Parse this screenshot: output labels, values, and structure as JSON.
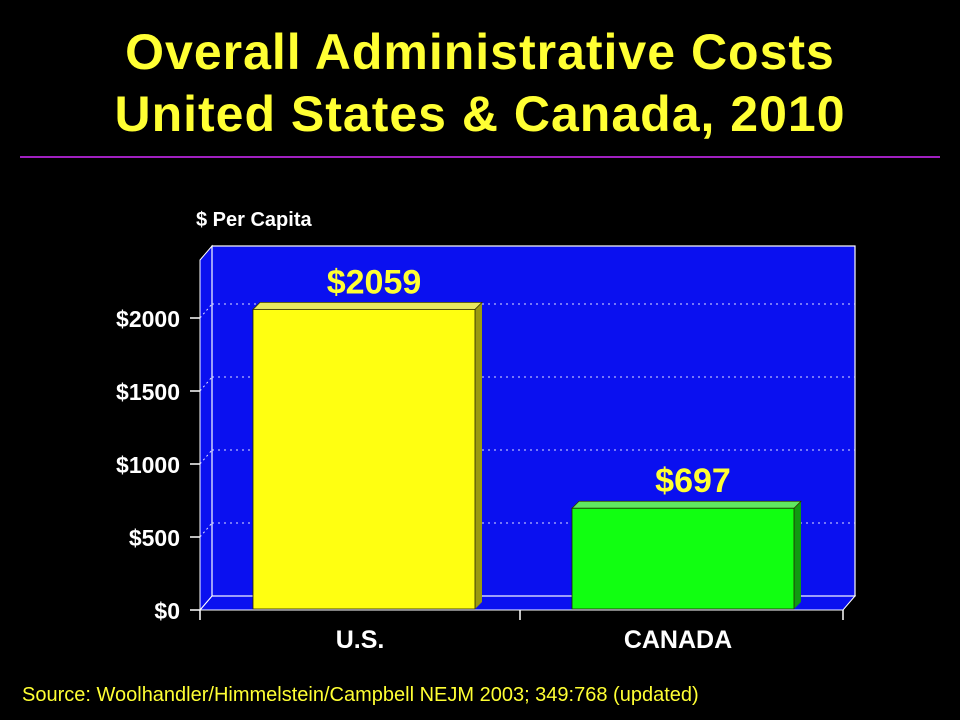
{
  "title": {
    "line1": "Overall Administrative Costs",
    "line2": "United States & Canada, 2010"
  },
  "source": "Source: Woolhandler/Himmelstein/Campbell NEJM 2003; 349:768 (updated)",
  "colors": {
    "background": "#000000",
    "title": "#ffff33",
    "plot_background": "#0a10f0",
    "us_bar": "#ffff11",
    "canada_bar": "#11ff11",
    "rule": "#a020c0"
  },
  "chart_data": {
    "type": "bar",
    "ylabel": "$ Per Capita",
    "categories": [
      "U.S.",
      "CANADA"
    ],
    "values": [
      2059,
      697
    ],
    "value_labels": [
      "$2059",
      "$697"
    ],
    "yticks": [
      0,
      500,
      1000,
      1500,
      2000
    ],
    "ytick_labels": [
      "$0",
      "$500",
      "$1000",
      "$1500",
      "$2000"
    ],
    "ylim": [
      0,
      2500
    ],
    "grid": true,
    "legend": "none"
  }
}
